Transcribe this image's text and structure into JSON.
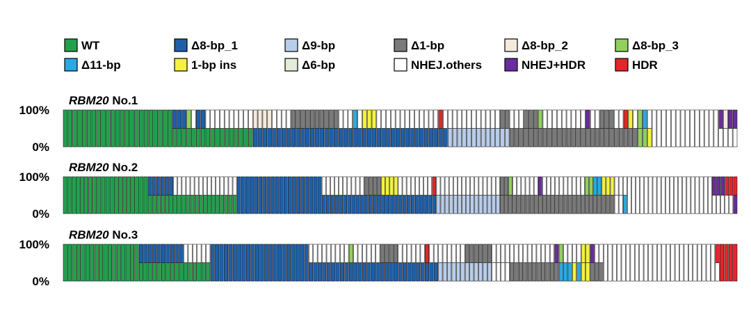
{
  "legend": [
    {
      "key": "WT",
      "label": "WT",
      "color": "#22a04b"
    },
    {
      "key": "d8_1",
      "label": "Δ8-bp_1",
      "color": "#1f5fa8"
    },
    {
      "key": "d9",
      "label": "Δ9-bp",
      "color": "#b8cde9"
    },
    {
      "key": "d1",
      "label": "Δ1-bp",
      "color": "#7a7a7a"
    },
    {
      "key": "d8_2",
      "label": "Δ8-bp_2",
      "color": "#f5e9dc"
    },
    {
      "key": "d8_3",
      "label": "Δ8-bp_3",
      "color": "#92cf5c"
    },
    {
      "key": "d11",
      "label": "Δ11-bp",
      "color": "#29a9e1"
    },
    {
      "key": "ins1",
      "label": "1-bp ins",
      "color": "#f5f23c"
    },
    {
      "key": "d6",
      "label": "Δ6-bp",
      "color": "#e4ecd8"
    },
    {
      "key": "nhej",
      "label": "NHEJ.others",
      "color": "#ffffff"
    },
    {
      "key": "nhejhdr",
      "label": "NHEJ+HDR",
      "color": "#6a2c9e"
    },
    {
      "key": "hdr",
      "label": "HDR",
      "color": "#e3262a"
    }
  ],
  "chart_data": [
    {
      "type": "bar",
      "stacked": true,
      "title_italic": "RBM20",
      "title_rest": " No.1",
      "yticks": [
        "100%",
        "0%"
      ],
      "ylim": [
        0,
        100
      ],
      "segments": [
        [
          "WT:2",
          22
        ],
        [
          "WT:2",
          1
        ],
        [
          "WT:1|d8_1:1",
          3
        ],
        [
          "WT:1|d8_3:1",
          1
        ],
        [
          "WT:1|nhej:1",
          1
        ],
        [
          "WT:1|d8_1:1",
          2
        ],
        [
          "WT:1|nhej:1",
          10
        ],
        [
          "d8_1:1|d8_2:1",
          4
        ],
        [
          "d8_1:1|nhej:1",
          4
        ],
        [
          "d8_1:1|d1:1",
          10
        ],
        [
          "d8_1:1|nhej:1",
          3
        ],
        [
          "d8_1:1|d11:1",
          1
        ],
        [
          "d8_1:1|nhej:1",
          1
        ],
        [
          "d8_1:1|ins1:1",
          3
        ],
        [
          "d8_1:1|nhej:1",
          13
        ],
        [
          "d8_1:1|hdr:1",
          1
        ],
        [
          "d8_1:1|nhej:1",
          1
        ],
        [
          "d9:1|nhej:1",
          11
        ],
        [
          "d9:1|d1:1",
          2
        ],
        [
          "d1:1|nhej:1",
          3
        ],
        [
          "d1:1|d1:1",
          3
        ],
        [
          "d1:1|d8_3:1",
          1
        ],
        [
          "d1:1|nhej:1",
          9
        ],
        [
          "d1:1|nhejhdr:1",
          1
        ],
        [
          "d1:1|nhej:1",
          2
        ],
        [
          "d1:1|d1:1",
          3
        ],
        [
          "d1:1|nhej:1",
          2
        ],
        [
          "d1:1|hdr:1",
          1
        ],
        [
          "d1:1|ins1:1",
          1
        ],
        [
          "d1:1|nhej:1",
          1
        ],
        [
          "d8_3:1|d8_3:1",
          1
        ],
        [
          "d8_3:1|d11:1",
          1
        ],
        [
          "ins1:1|nhej:1",
          1
        ],
        [
          "nhej:2",
          14
        ],
        [
          "nhej:1|nhejhdr:1",
          1
        ],
        [
          "nhej:1|d8_2:1",
          1
        ],
        [
          "nhej:1|nhejhdr:1",
          2
        ]
      ]
    },
    {
      "type": "bar",
      "stacked": true,
      "title_italic": "RBM20",
      "title_rest": " No.2",
      "yticks": [
        "100%",
        "0%"
      ],
      "ylim": [
        0,
        100
      ],
      "segments": [
        [
          "WT:2",
          20
        ],
        [
          "WT:1|d8_1:1",
          6
        ],
        [
          "WT:1|nhej:1",
          15
        ],
        [
          "d8_1:2",
          20
        ],
        [
          "d8_1:1|nhej:1",
          10
        ],
        [
          "d8_1:1|d1:1",
          4
        ],
        [
          "d8_1:1|ins1:1",
          4
        ],
        [
          "d8_1:1|nhej:1",
          8
        ],
        [
          "d8_1:1|hdr:1",
          1
        ],
        [
          "d9:1|nhej:1",
          15
        ],
        [
          "d1:1|d1:1",
          2
        ],
        [
          "d1:1|d8_3:1",
          1
        ],
        [
          "d1:1|nhej:1",
          6
        ],
        [
          "d1:1|nhejhdr:1",
          1
        ],
        [
          "d1:1|nhej:1",
          10
        ],
        [
          "d1:1|d8_3:1",
          2
        ],
        [
          "d1:1|d11:1",
          2
        ],
        [
          "d1:1|ins1:1",
          3
        ],
        [
          "nhej:1|nhej:1",
          2
        ],
        [
          "d11:1|nhej:1",
          1
        ],
        [
          "nhej:2",
          20
        ],
        [
          "nhej:1|nhejhdr:1",
          3
        ],
        [
          "nhej:1|hdr:1",
          2
        ],
        [
          "nhejhdr:1|hdr:1",
          1
        ]
      ]
    },
    {
      "type": "bar",
      "stacked": true,
      "title_italic": "RBM20",
      "title_rest": " No.3",
      "yticks": [
        "100%",
        "0%"
      ],
      "ylim": [
        0,
        100
      ],
      "segments": [
        [
          "WT:2",
          17
        ],
        [
          "WT:1|d8_1:1",
          10
        ],
        [
          "WT:1|nhej:1",
          6
        ],
        [
          "d8_1:2",
          22
        ],
        [
          "d8_1:1|nhej:1",
          9
        ],
        [
          "d8_1:1|d8_3:1",
          1
        ],
        [
          "d8_1:1|nhej:1",
          6
        ],
        [
          "d8_1:1|d1:1",
          4
        ],
        [
          "d8_1:1|nhej:1",
          6
        ],
        [
          "d8_1:1|hdr:1",
          1
        ],
        [
          "d8_1:1|nhej:1",
          2
        ],
        [
          "d9:1|nhej:1",
          6
        ],
        [
          "d9:1|d1:1",
          6
        ],
        [
          "nhej:1|nhej:1",
          4
        ],
        [
          "d1:1|nhej:1",
          10
        ],
        [
          "d1:1|nhejhdr:1",
          1
        ],
        [
          "d11:1|d8_3:1",
          1
        ],
        [
          "d11:1|nhej:1",
          2
        ],
        [
          "ins1:1|nhej:1",
          1
        ],
        [
          "d11:1|nhej:1",
          1
        ],
        [
          "ins1:1|ins1:1",
          2
        ],
        [
          "d1:1|nhejhdr:1",
          1
        ],
        [
          "d1:1|nhej:1",
          2
        ],
        [
          "nhej:2",
          25
        ],
        [
          "nhej:1|hdr:1",
          1
        ],
        [
          "hdr:2",
          4
        ]
      ]
    }
  ]
}
